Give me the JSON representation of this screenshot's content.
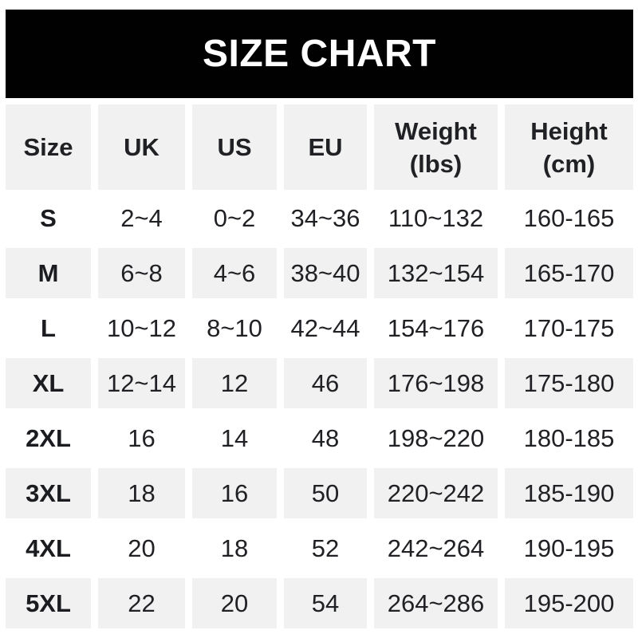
{
  "title": "SIZE CHART",
  "colors": {
    "banner_bg": "#010101",
    "banner_text": "#ffffff",
    "row_alt_bg": "#f1f1f1",
    "text": "#202124",
    "text_strong": "#1b1c20"
  },
  "chart_data": {
    "type": "table",
    "title": "SIZE CHART",
    "columns": [
      {
        "label": "Size",
        "sub": ""
      },
      {
        "label": "UK",
        "sub": ""
      },
      {
        "label": "US",
        "sub": ""
      },
      {
        "label": "EU",
        "sub": ""
      },
      {
        "label": "Weight",
        "sub": "(lbs)"
      },
      {
        "label": "Height",
        "sub": "(cm)"
      }
    ],
    "rows": [
      [
        "S",
        "2~4",
        "0~2",
        "34~36",
        "110~132",
        "160-165"
      ],
      [
        "M",
        "6~8",
        "4~6",
        "38~40",
        "132~154",
        "165-170"
      ],
      [
        "L",
        "10~12",
        "8~10",
        "42~44",
        "154~176",
        "170-175"
      ],
      [
        "XL",
        "12~14",
        "12",
        "46",
        "176~198",
        "175-180"
      ],
      [
        "2XL",
        "16",
        "14",
        "48",
        "198~220",
        "180-185"
      ],
      [
        "3XL",
        "18",
        "16",
        "50",
        "220~242",
        "185-190"
      ],
      [
        "4XL",
        "20",
        "18",
        "52",
        "242~264",
        "190-195"
      ],
      [
        "5XL",
        "22",
        "20",
        "54",
        "264~286",
        "195-200"
      ]
    ]
  }
}
